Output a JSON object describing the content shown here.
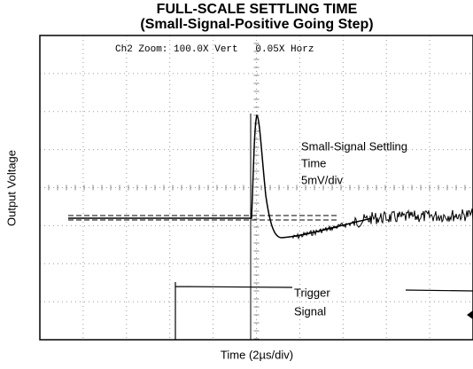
{
  "title": "FULL-SCALE SETTLING TIME",
  "subtitle": "(Small-Signal-Positive Going Step)",
  "scope_header": "Ch2 Zoom: 100.0X Vert   0.05X Horz",
  "y_axis_label": "Output Voltage",
  "x_axis_label": "Time (2µs/div)",
  "annotations": [
    "Small-Signal Settling",
    "Time",
    "5mV/div",
    "Trigger",
    "Signal"
  ]
}
